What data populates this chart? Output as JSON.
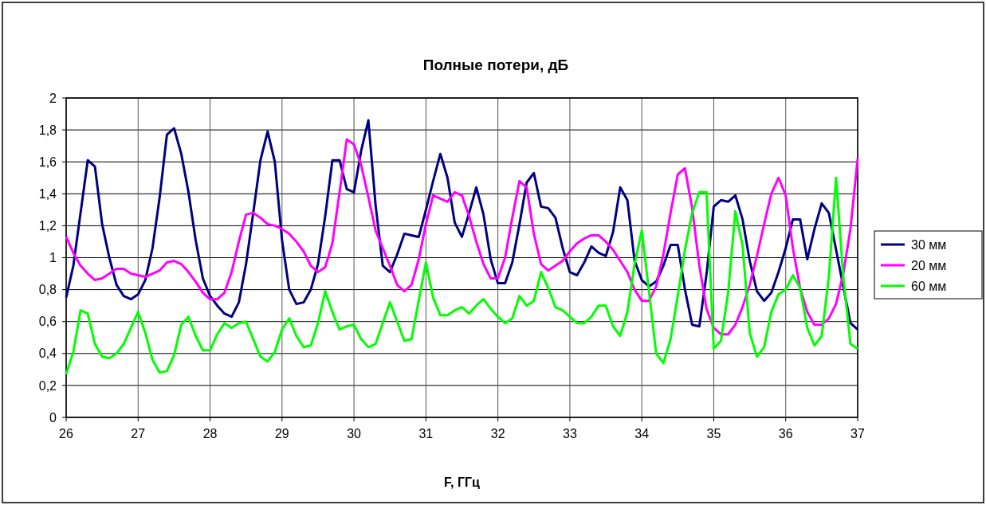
{
  "chart_data": {
    "type": "line",
    "title": "Полные потери, дБ",
    "xlabel": "F, ГГц",
    "x": [
      26.0,
      26.1,
      26.2,
      26.3,
      26.4,
      26.5,
      26.6,
      26.7,
      26.8,
      26.9,
      27.0,
      27.1,
      27.2,
      27.3,
      27.4,
      27.5,
      27.6,
      27.7,
      27.8,
      27.9,
      28.0,
      28.1,
      28.2,
      28.3,
      28.4,
      28.5,
      28.6,
      28.7,
      28.8,
      28.9,
      29.0,
      29.1,
      29.2,
      29.3,
      29.4,
      29.5,
      29.6,
      29.7,
      29.8,
      29.9,
      30.0,
      30.1,
      30.2,
      30.3,
      30.4,
      30.5,
      30.6,
      30.7,
      30.8,
      30.9,
      31.0,
      31.1,
      31.2,
      31.3,
      31.4,
      31.5,
      31.6,
      31.7,
      31.8,
      31.9,
      32.0,
      32.1,
      32.2,
      32.3,
      32.4,
      32.5,
      32.6,
      32.7,
      32.8,
      32.9,
      33.0,
      33.1,
      33.2,
      33.3,
      33.4,
      33.5,
      33.6,
      33.7,
      33.8,
      33.9,
      34.0,
      34.1,
      34.2,
      34.3,
      34.4,
      34.5,
      34.6,
      34.7,
      34.8,
      34.9,
      35.0,
      35.1,
      35.2,
      35.3,
      35.4,
      35.5,
      35.6,
      35.7,
      35.8,
      35.9,
      36.0,
      36.1,
      36.2,
      36.3,
      36.4,
      36.5,
      36.6,
      36.7,
      36.8,
      36.9,
      37.0
    ],
    "series": [
      {
        "name": "30 мм",
        "color": "#000080",
        "values": [
          0.75,
          0.95,
          1.28,
          1.61,
          1.57,
          1.21,
          1.0,
          0.83,
          0.76,
          0.74,
          0.77,
          0.86,
          1.06,
          1.38,
          1.77,
          1.81,
          1.65,
          1.41,
          1.11,
          0.87,
          0.76,
          0.7,
          0.65,
          0.63,
          0.72,
          0.96,
          1.28,
          1.61,
          1.79,
          1.6,
          1.11,
          0.8,
          0.71,
          0.72,
          0.8,
          0.96,
          1.26,
          1.61,
          1.61,
          1.43,
          1.41,
          1.67,
          1.86,
          1.33,
          0.95,
          0.91,
          1.02,
          1.15,
          1.14,
          1.13,
          1.3,
          1.48,
          1.65,
          1.5,
          1.22,
          1.13,
          1.28,
          1.44,
          1.27,
          0.99,
          0.84,
          0.84,
          0.97,
          1.21,
          1.47,
          1.53,
          1.32,
          1.31,
          1.25,
          1.06,
          0.91,
          0.89,
          0.97,
          1.07,
          1.03,
          1.01,
          1.16,
          1.44,
          1.36,
          0.98,
          0.86,
          0.82,
          0.85,
          0.95,
          1.08,
          1.08,
          0.8,
          0.58,
          0.57,
          0.9,
          1.32,
          1.36,
          1.35,
          1.39,
          1.24,
          0.98,
          0.79,
          0.73,
          0.78,
          0.91,
          1.06,
          1.24,
          1.24,
          0.99,
          1.18,
          1.34,
          1.28,
          1.05,
          0.82,
          0.59,
          0.55
        ]
      },
      {
        "name": "20 мм",
        "color": "#ff00ff",
        "values": [
          1.13,
          1.03,
          0.95,
          0.9,
          0.86,
          0.87,
          0.9,
          0.93,
          0.93,
          0.9,
          0.89,
          0.88,
          0.9,
          0.92,
          0.97,
          0.98,
          0.96,
          0.91,
          0.85,
          0.78,
          0.74,
          0.74,
          0.78,
          0.91,
          1.1,
          1.27,
          1.28,
          1.25,
          1.21,
          1.2,
          1.18,
          1.15,
          1.1,
          1.04,
          0.95,
          0.91,
          0.94,
          1.09,
          1.41,
          1.74,
          1.71,
          1.58,
          1.38,
          1.17,
          1.06,
          0.95,
          0.83,
          0.79,
          0.83,
          0.99,
          1.21,
          1.39,
          1.37,
          1.35,
          1.41,
          1.39,
          1.26,
          1.1,
          0.96,
          0.87,
          0.87,
          1.0,
          1.25,
          1.48,
          1.44,
          1.15,
          0.96,
          0.92,
          0.95,
          0.98,
          1.04,
          1.09,
          1.12,
          1.14,
          1.14,
          1.1,
          1.05,
          0.98,
          0.91,
          0.8,
          0.73,
          0.73,
          0.82,
          1.02,
          1.28,
          1.52,
          1.56,
          1.31,
          0.95,
          0.68,
          0.56,
          0.52,
          0.52,
          0.58,
          0.69,
          0.83,
          1.01,
          1.21,
          1.4,
          1.5,
          1.39,
          1.06,
          0.81,
          0.66,
          0.58,
          0.58,
          0.62,
          0.71,
          0.9,
          1.18,
          1.62
        ]
      },
      {
        "name": "60 мм",
        "color": "#00ff00",
        "values": [
          0.27,
          0.41,
          0.67,
          0.65,
          0.46,
          0.38,
          0.37,
          0.4,
          0.46,
          0.56,
          0.66,
          0.53,
          0.36,
          0.28,
          0.29,
          0.39,
          0.58,
          0.63,
          0.51,
          0.42,
          0.42,
          0.52,
          0.59,
          0.56,
          0.59,
          0.6,
          0.49,
          0.38,
          0.35,
          0.41,
          0.55,
          0.62,
          0.51,
          0.44,
          0.45,
          0.59,
          0.79,
          0.66,
          0.55,
          0.57,
          0.58,
          0.49,
          0.44,
          0.46,
          0.59,
          0.72,
          0.6,
          0.48,
          0.49,
          0.73,
          0.97,
          0.75,
          0.64,
          0.64,
          0.67,
          0.69,
          0.65,
          0.7,
          0.74,
          0.68,
          0.63,
          0.59,
          0.62,
          0.76,
          0.7,
          0.73,
          0.91,
          0.81,
          0.69,
          0.67,
          0.63,
          0.59,
          0.59,
          0.63,
          0.7,
          0.7,
          0.57,
          0.51,
          0.66,
          0.96,
          1.17,
          0.79,
          0.4,
          0.34,
          0.49,
          0.76,
          1.05,
          1.28,
          1.41,
          1.41,
          0.43,
          0.48,
          0.78,
          1.29,
          1.08,
          0.53,
          0.38,
          0.44,
          0.66,
          0.77,
          0.8,
          0.89,
          0.81,
          0.56,
          0.45,
          0.51,
          0.88,
          1.5,
          0.88,
          0.46,
          0.43
        ]
      }
    ],
    "xlim": [
      26,
      37
    ],
    "xticks": [
      26,
      27,
      28,
      29,
      30,
      31,
      32,
      33,
      34,
      35,
      36,
      37
    ],
    "ylim": [
      0,
      2
    ],
    "yticks": [
      0,
      {
        "value": 0.2,
        "label": "0,2"
      },
      {
        "value": 0.4,
        "label": "0,4"
      },
      {
        "value": 0.6,
        "label": "0,6"
      },
      {
        "value": 0.8,
        "label": "0,8"
      },
      1,
      {
        "value": 1.2,
        "label": "1,2"
      },
      {
        "value": 1.4,
        "label": "1,4"
      },
      {
        "value": 1.6,
        "label": "1,6"
      },
      {
        "value": 1.8,
        "label": "1,8"
      },
      2
    ],
    "grid": true,
    "legend": "right",
    "marker": "none",
    "line_style": "solid"
  }
}
